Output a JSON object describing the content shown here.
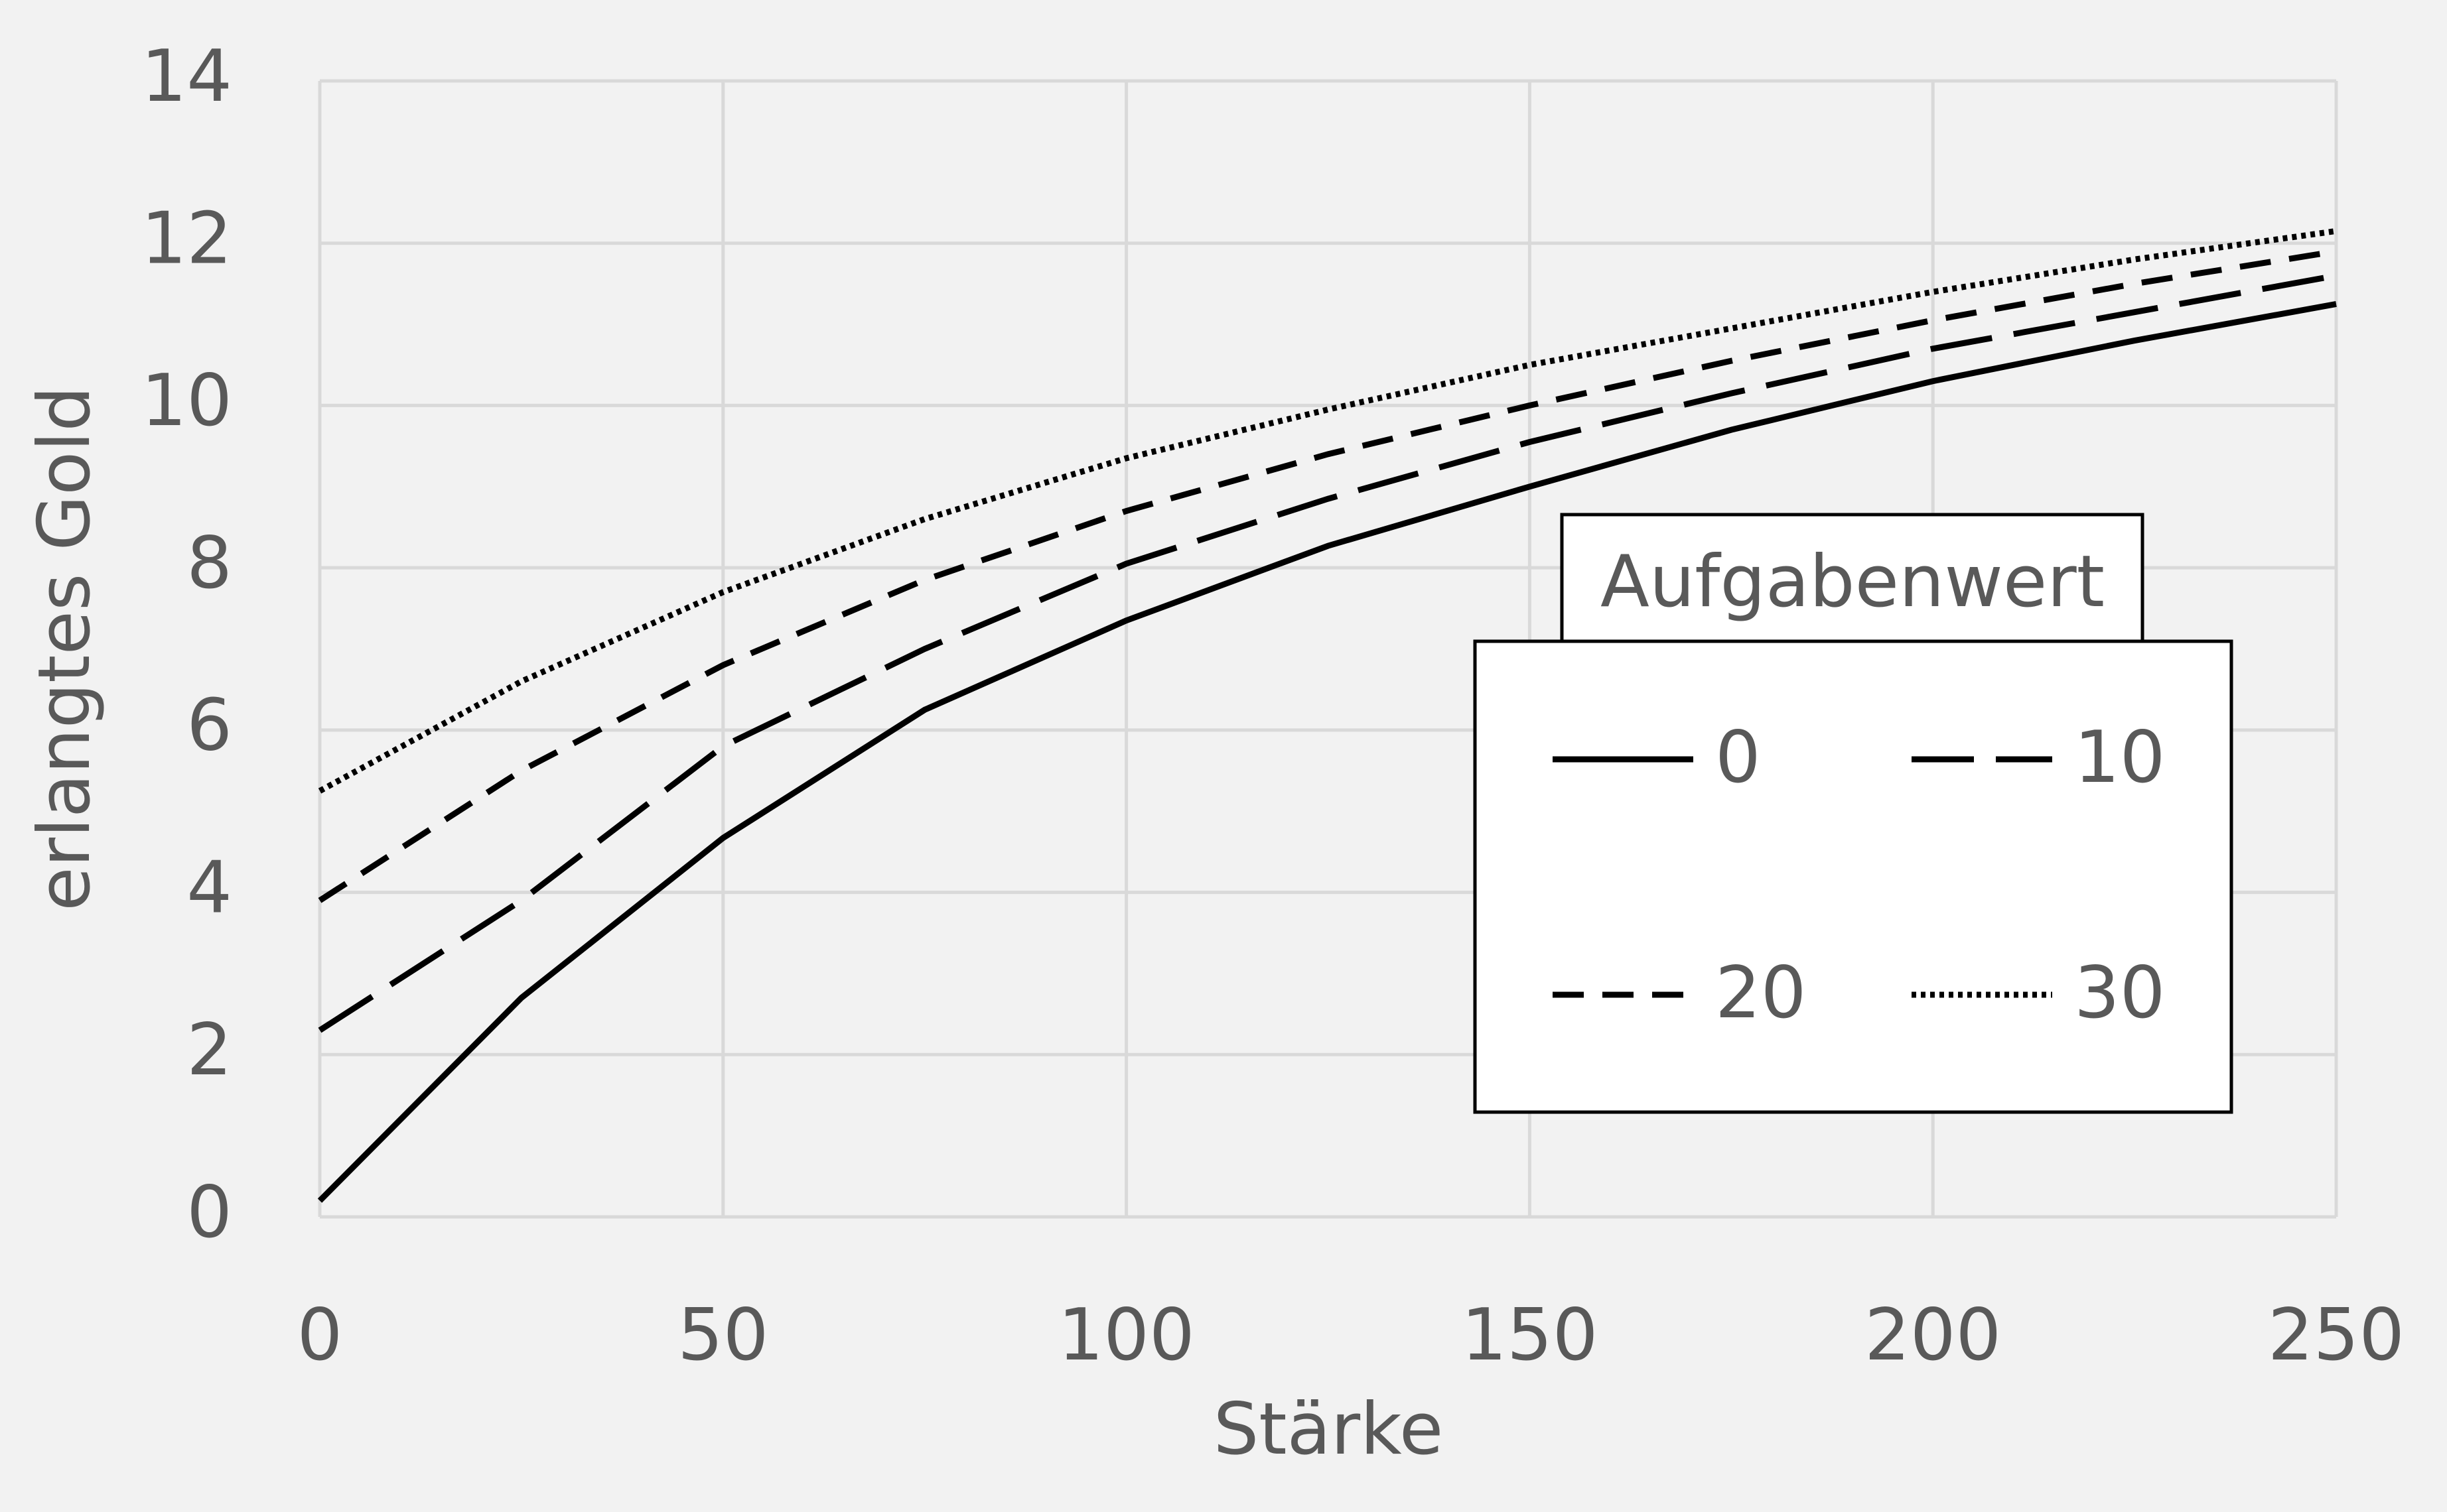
{
  "chart_data": {
    "type": "line",
    "x_label": "Stärke",
    "y_label": "erlangtes Gold",
    "x": [
      0,
      25,
      50,
      75,
      100,
      125,
      150,
      175,
      200,
      225,
      250
    ],
    "series": [
      {
        "name": "0",
        "color": "#000000",
        "dash": "solid",
        "values": [
          0.2,
          2.7,
          4.67,
          6.25,
          7.35,
          8.27,
          9.0,
          9.7,
          10.3,
          10.8,
          11.25
        ]
      },
      {
        "name": "10",
        "color": "#000000",
        "dash": "long-dash",
        "values": [
          2.3,
          3.9,
          5.8,
          7.0,
          8.05,
          8.85,
          9.55,
          10.15,
          10.7,
          11.15,
          11.6
        ]
      },
      {
        "name": "20",
        "color": "#000000",
        "dash": "dash",
        "values": [
          3.9,
          5.5,
          6.8,
          7.85,
          8.7,
          9.4,
          10.0,
          10.55,
          11.05,
          11.5,
          11.9
        ]
      },
      {
        "name": "30",
        "color": "#000000",
        "dash": "dot",
        "values": [
          5.25,
          6.6,
          7.7,
          8.6,
          9.35,
          9.95,
          10.5,
          10.95,
          11.4,
          11.8,
          12.15
        ]
      }
    ],
    "legend_title": "Aufgabenwert",
    "legend": "right",
    "xlim": [
      0,
      250
    ],
    "xticks": [
      0,
      50,
      100,
      150,
      200,
      250
    ],
    "ylim": [
      0,
      14
    ],
    "yticks": [
      0,
      2,
      4,
      6,
      8,
      10,
      12,
      14
    ],
    "grid": true
  }
}
